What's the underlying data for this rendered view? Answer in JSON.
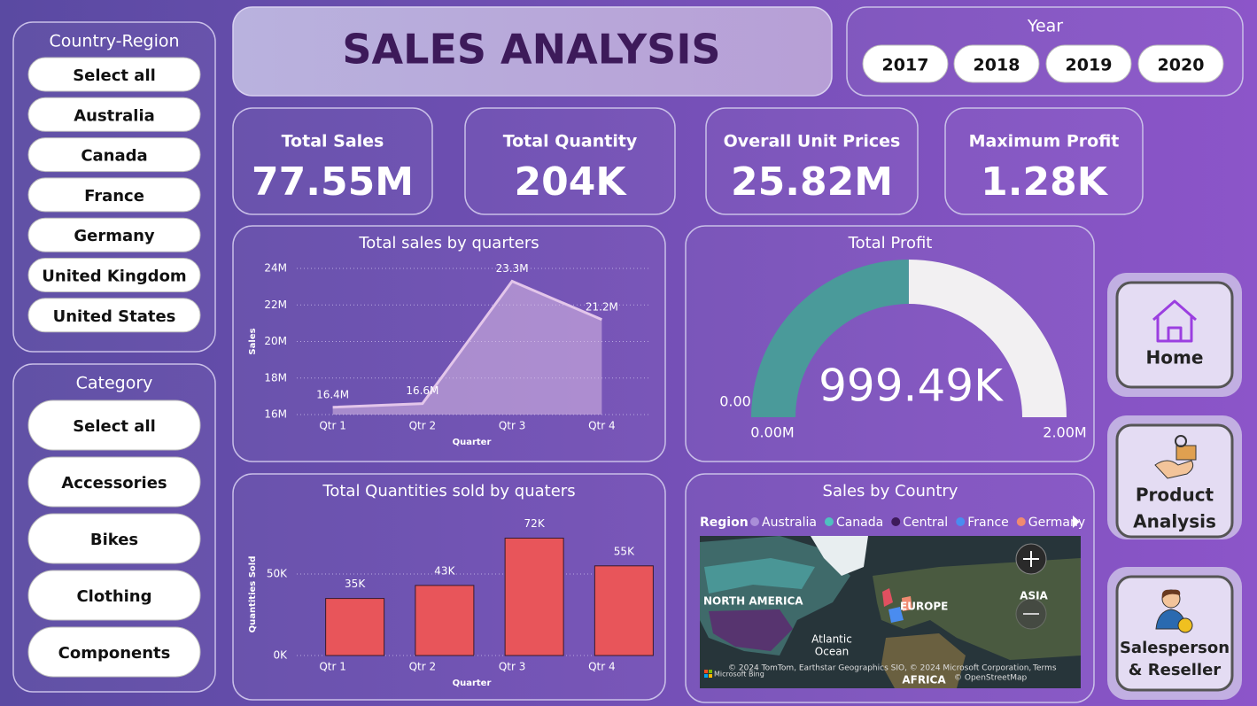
{
  "title": "SALES ANALYSIS",
  "filters": {
    "country_region": {
      "title": "Country-Region",
      "items": [
        "Select all",
        "Australia",
        "Canada",
        "France",
        "Germany",
        "United Kingdom",
        "United States"
      ]
    },
    "year": {
      "title": "Year",
      "items": [
        "2017",
        "2018",
        "2019",
        "2020"
      ]
    },
    "category": {
      "title": "Category",
      "items": [
        "Select all",
        "Accessories",
        "Bikes",
        "Clothing",
        "Components"
      ]
    }
  },
  "kpis": [
    {
      "label": "Total Sales",
      "value": "77.55M"
    },
    {
      "label": "Total Quantity",
      "value": "204K"
    },
    {
      "label": "Overall Unit Prices",
      "value": "25.82M"
    },
    {
      "label": "Maximum Profit",
      "value": "1.28K"
    }
  ],
  "nav": [
    {
      "lines": [
        "Home"
      ]
    },
    {
      "lines": [
        "Product",
        "Analysis"
      ]
    },
    {
      "lines": [
        "Salesperson",
        "& Reseller"
      ]
    }
  ],
  "chart_data": [
    {
      "type": "area",
      "title": "Total sales by quarters",
      "x_label": "Quarter",
      "y_label": "Sales",
      "categories": [
        "Qtr 1",
        "Qtr 2",
        "Qtr 3",
        "Qtr 4"
      ],
      "values": [
        16400000,
        16600000,
        23300000,
        21200000
      ],
      "value_labels": [
        "16.4M",
        "16.6M",
        "23.3M",
        "21.2M"
      ],
      "color": "#e3c6ea",
      "ylim": [
        16000000,
        24000000
      ],
      "yticks": [
        {
          "value": 16000000,
          "label": "16M"
        },
        {
          "value": 18000000,
          "label": "18M"
        },
        {
          "value": 20000000,
          "label": "20M"
        },
        {
          "value": 22000000,
          "label": "22M"
        },
        {
          "value": 24000000,
          "label": "24M"
        }
      ],
      "grid": true
    },
    {
      "type": "bar",
      "title": "Total Quantities sold by quaters",
      "x_label": "Quarter",
      "y_label": "Quantities Sold",
      "categories": [
        "Qtr 1",
        "Qtr 2",
        "Qtr 3",
        "Qtr 4"
      ],
      "values": [
        35000,
        43000,
        72000,
        55000
      ],
      "value_labels": [
        "35K",
        "43K",
        "72K",
        "55K"
      ],
      "color": "#e8555a",
      "ylim": [
        0,
        75000
      ],
      "yticks": [
        {
          "value": 0,
          "label": "0K"
        },
        {
          "value": 50000,
          "label": "50K"
        }
      ],
      "grid": true
    },
    {
      "type": "gauge",
      "title": "Total Profit",
      "value": 999490,
      "value_label": "999.49K",
      "min": 0,
      "max": 2000000,
      "min_label": "0.00M",
      "max_label": "2.00M",
      "target_label": "0.00",
      "color": "#4a9a9a",
      "track_color": "#f2f0f2"
    },
    {
      "type": "map",
      "title": "Sales by Country",
      "legend_title": "Region",
      "series": [
        {
          "name": "Australia",
          "color": "#a98ed8"
        },
        {
          "name": "Canada",
          "color": "#4fc0c0"
        },
        {
          "name": "Central",
          "color": "#3d1a5a"
        },
        {
          "name": "France",
          "color": "#4a8cf0"
        },
        {
          "name": "Germany",
          "color": "#f08a70"
        }
      ],
      "places": [
        "NORTH AMERICA",
        "EUROPE",
        "Atlantic Ocean",
        "ASIA",
        "AFRICA"
      ],
      "attribution": [
        "© 2024 TomTom, Earthstar Geographics SIO, © 2024 Microsoft Corporation,",
        "Terms",
        "© OpenStreetMap",
        "Microsoft Bing"
      ]
    }
  ]
}
